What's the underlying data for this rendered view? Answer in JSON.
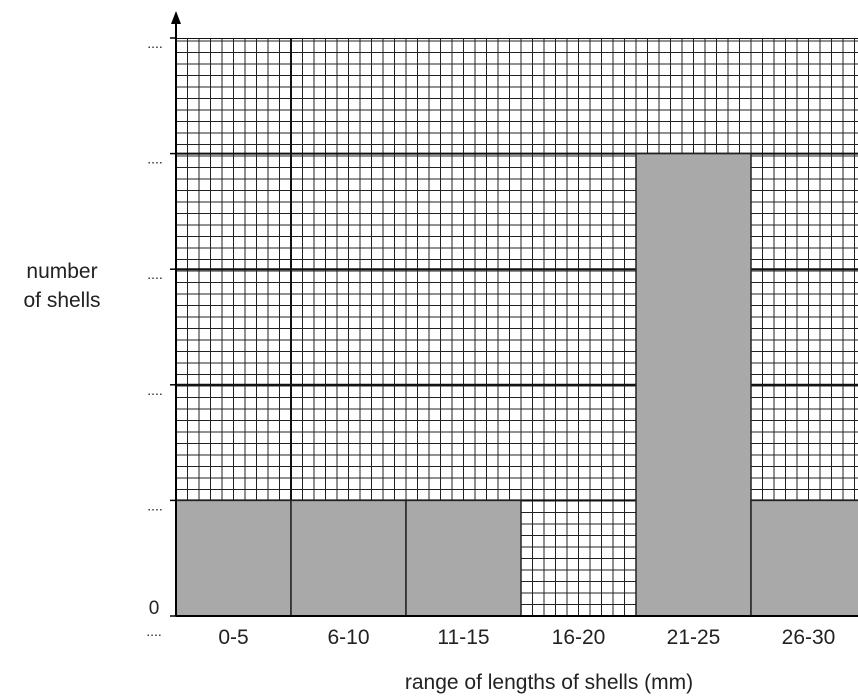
{
  "chart_data": {
    "type": "bar",
    "categories": [
      "0-5",
      "6-10",
      "11-15",
      "16-20",
      "21-25",
      "26-30"
    ],
    "values": [
      1,
      1,
      1,
      0,
      4,
      1
    ],
    "ylabel_lines": [
      "number",
      "of shells"
    ],
    "xlabel": "range of lengths of shells (mm)",
    "y_tick_labels": [
      "0",
      "....",
      "....",
      "....",
      "....",
      "...."
    ],
    "x_origin_dots": "....",
    "ylim": [
      0,
      5
    ],
    "grid": true,
    "colors": {
      "bar_fill": "#a9a9a9",
      "bar_edge": "#222222",
      "grid_minor": "#222222",
      "grid_major": "#111111",
      "text": "#222222"
    }
  }
}
